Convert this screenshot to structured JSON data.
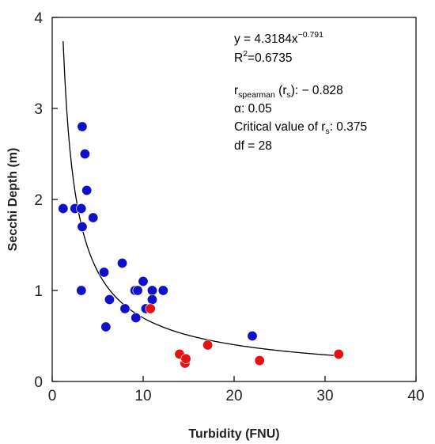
{
  "chart_data": {
    "type": "scatter",
    "xlabel": "Turbidity (FNU)",
    "ylabel": "Secchi Depth (m)",
    "xlim": [
      0,
      40
    ],
    "ylim": [
      0,
      4
    ],
    "xticks": [
      "0",
      "10",
      "20",
      "30",
      "40"
    ],
    "yticks": [
      "0",
      "1",
      "2",
      "3",
      "4"
    ],
    "grid": false,
    "series": [
      {
        "color": "#1010c8",
        "points": [
          [
            1.2,
            1.9
          ],
          [
            2.5,
            1.9
          ],
          [
            3.2,
            1.9
          ],
          [
            3.3,
            1.7
          ],
          [
            3.3,
            2.8
          ],
          [
            3.6,
            2.5
          ],
          [
            3.8,
            2.1
          ],
          [
            4.5,
            1.8
          ],
          [
            3.2,
            1.0
          ],
          [
            5.7,
            1.2
          ],
          [
            6.3,
            0.9
          ],
          [
            5.9,
            0.6
          ],
          [
            7.7,
            1.3
          ],
          [
            8.0,
            0.8
          ],
          [
            9.1,
            1.0
          ],
          [
            9.4,
            1.0
          ],
          [
            9.2,
            0.7
          ],
          [
            10.0,
            1.1
          ],
          [
            10.3,
            0.8
          ],
          [
            11.0,
            1.0
          ],
          [
            11.0,
            0.9
          ],
          [
            12.2,
            1.0
          ],
          [
            22.0,
            0.5
          ]
        ]
      },
      {
        "color": "#e81010",
        "points": [
          [
            10.8,
            0.8
          ],
          [
            14.0,
            0.3
          ],
          [
            14.6,
            0.2
          ],
          [
            14.7,
            0.25
          ],
          [
            17.1,
            0.4
          ],
          [
            22.8,
            0.23
          ],
          [
            31.5,
            0.3
          ]
        ]
      }
    ],
    "fit": {
      "a": 4.3184,
      "b": -0.791,
      "x_from": 1.2,
      "x_to": 31.5
    },
    "annotations": {
      "equation_prefix": "y = 4.3184x",
      "equation_exponent": "−0.791",
      "r_squared_r": "R",
      "r_squared_exp": "2",
      "r_squared_value": "=0.6735",
      "spearman_r": "r",
      "spearman_sub": "spearman",
      "spearman_mid": " (r",
      "spearman_sub2": "s",
      "spearman_value": "):  − 0.828",
      "alpha": "α: 0.05",
      "critical_label": "Critical value of r",
      "critical_sub": "s",
      "critical_value": ": 0.375",
      "df": "df = 28"
    }
  }
}
